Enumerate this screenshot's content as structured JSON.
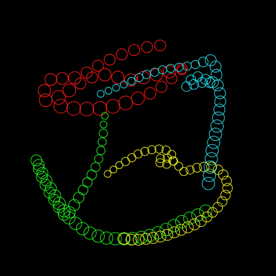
{
  "background": "#000000",
  "trails": [
    {
      "name": "red-trail",
      "color": "#ff1a1a",
      "count": 34
    },
    {
      "name": "cyan-trail",
      "color": "#26d9e6",
      "count": 38
    },
    {
      "name": "green-trail",
      "color": "#1fe61f",
      "count": 46
    },
    {
      "name": "yellow-trail",
      "color": "#e6e61f",
      "count": 44
    }
  ]
}
